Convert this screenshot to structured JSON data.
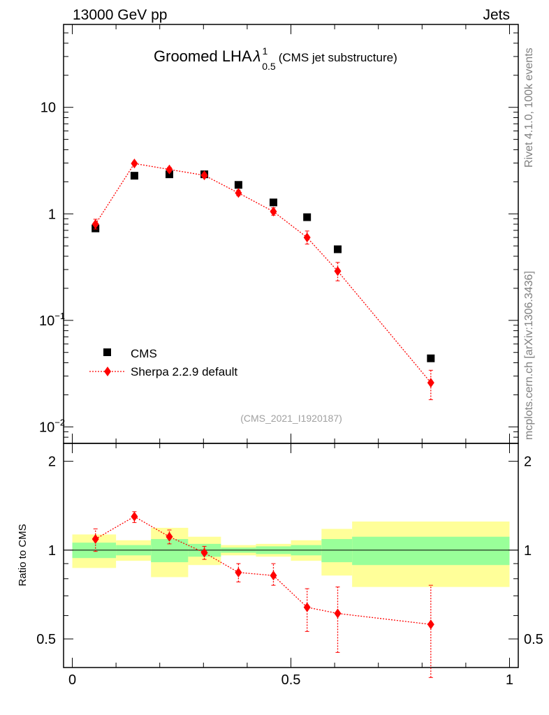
{
  "header": {
    "left": "13000 GeV pp",
    "right": "Jets"
  },
  "title": {
    "main": "Groomed LHA",
    "lambda": "λ",
    "sup": "1",
    "sub": "0.5",
    "note": "(CMS jet substructure)"
  },
  "side_labels": {
    "top": "Rivet 4.1.0,  100k events",
    "bottom": "mcplots.cern.ch [arXiv:1306.3436]"
  },
  "analysis_id": "(CMS_2021_I1920187)",
  "legend": {
    "cms": "CMS",
    "sherpa": "Sherpa 2.2.9 default"
  },
  "colors": {
    "data": "#000000",
    "mc": "#ff0000",
    "band_inner": "#99ff99",
    "band_outer": "#ffff99"
  },
  "chart_data": [
    {
      "type": "scatter",
      "panel": "main",
      "yscale": "log",
      "ylim": [
        0.007,
        60
      ],
      "xlim": [
        -0.02,
        1.02
      ],
      "ytick_labels": [
        {
          "value": 10,
          "base": "10",
          "exp": ""
        },
        {
          "value": 1,
          "base": "1",
          "exp": ""
        },
        {
          "value": 0.1,
          "base": "10",
          "exp": "−1"
        },
        {
          "value": 0.01,
          "base": "10",
          "exp": "−2"
        }
      ],
      "series": [
        {
          "name": "CMS",
          "x": [
            0.053,
            0.142,
            0.222,
            0.302,
            0.38,
            0.46,
            0.537,
            0.607,
            0.82
          ],
          "values": [
            0.73,
            2.28,
            2.35,
            2.35,
            1.87,
            1.28,
            0.93,
            0.465,
            0.044
          ]
        },
        {
          "name": "Sherpa 2.2.9 default",
          "x": [
            0.053,
            0.142,
            0.222,
            0.302,
            0.38,
            0.46,
            0.537,
            0.607,
            0.82
          ],
          "values": [
            0.8,
            2.97,
            2.61,
            2.3,
            1.57,
            1.05,
            0.6,
            0.29,
            0.026
          ],
          "err_low": [
            0.72,
            2.85,
            2.48,
            2.2,
            1.48,
            0.97,
            0.52,
            0.235,
            0.018
          ],
          "err_high": [
            0.89,
            3.1,
            2.74,
            2.42,
            1.67,
            1.14,
            0.69,
            0.35,
            0.034
          ]
        }
      ]
    },
    {
      "type": "scatter",
      "panel": "ratio",
      "ylabel": "Ratio to CMS",
      "ylim": [
        0.4,
        2.3
      ],
      "xlim": [
        -0.02,
        1.02
      ],
      "yticks": [
        0.5,
        1,
        2
      ],
      "ytick_labels": [
        "0.5",
        "1",
        "2"
      ],
      "xticks": [
        0,
        0.5,
        1
      ],
      "xtick_labels": [
        "0",
        "0.5",
        "1"
      ],
      "bands": [
        {
          "x0": 0.0,
          "x1": 0.1,
          "inner": [
            0.94,
            1.06
          ],
          "outer": [
            0.87,
            1.13
          ]
        },
        {
          "x0": 0.1,
          "x1": 0.18,
          "inner": [
            0.96,
            1.04
          ],
          "outer": [
            0.92,
            1.08
          ]
        },
        {
          "x0": 0.18,
          "x1": 0.265,
          "inner": [
            0.91,
            1.09
          ],
          "outer": [
            0.81,
            1.19
          ]
        },
        {
          "x0": 0.265,
          "x1": 0.34,
          "inner": [
            0.95,
            1.05
          ],
          "outer": [
            0.89,
            1.11
          ]
        },
        {
          "x0": 0.34,
          "x1": 0.42,
          "inner": [
            0.98,
            1.02
          ],
          "outer": [
            0.96,
            1.04
          ]
        },
        {
          "x0": 0.42,
          "x1": 0.5,
          "inner": [
            0.97,
            1.03
          ],
          "outer": [
            0.95,
            1.05
          ]
        },
        {
          "x0": 0.5,
          "x1": 0.57,
          "inner": [
            0.96,
            1.04
          ],
          "outer": [
            0.92,
            1.08
          ]
        },
        {
          "x0": 0.57,
          "x1": 0.64,
          "inner": [
            0.91,
            1.09
          ],
          "outer": [
            0.82,
            1.18
          ]
        },
        {
          "x0": 0.64,
          "x1": 1.0,
          "inner": [
            0.89,
            1.11
          ],
          "outer": [
            0.75,
            1.25
          ]
        }
      ],
      "series": [
        {
          "name": "Sherpa 2.2.9 default",
          "x": [
            0.053,
            0.142,
            0.222,
            0.302,
            0.38,
            0.46,
            0.537,
            0.607,
            0.82
          ],
          "values": [
            1.09,
            1.3,
            1.11,
            0.98,
            0.84,
            0.82,
            0.64,
            0.61,
            0.56
          ],
          "err_low": [
            0.99,
            1.24,
            1.05,
            0.93,
            0.78,
            0.76,
            0.53,
            0.45,
            0.37
          ],
          "err_high": [
            1.18,
            1.35,
            1.17,
            1.03,
            0.9,
            0.9,
            0.74,
            0.75,
            0.76
          ]
        }
      ]
    }
  ]
}
